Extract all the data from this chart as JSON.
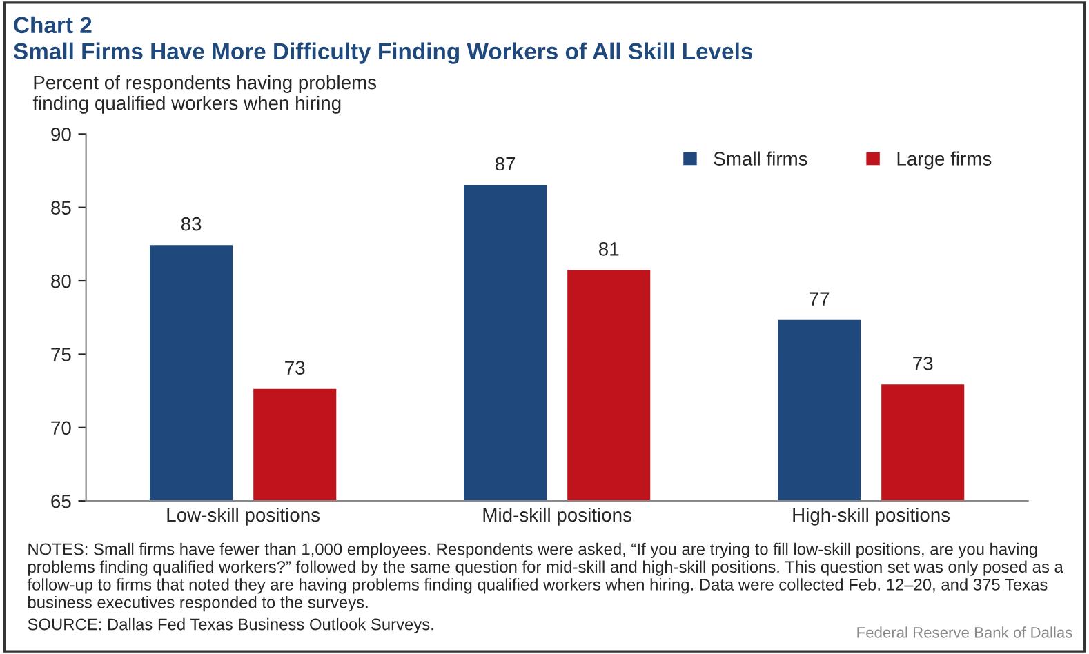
{
  "chart_data": {
    "type": "bar",
    "title": "Chart 2",
    "subtitle": "Small Firms Have More Difficulty Finding Workers of All Skill Levels",
    "ylabel": "Percent of respondents having problems\nfinding qualified workers when hiring",
    "categories": [
      "Low-skill positions",
      "Mid-skill positions",
      "High-skill positions"
    ],
    "series": [
      {
        "name": "Small firms",
        "color": "#1f497d",
        "values": [
          82.5,
          86.6,
          77.4
        ],
        "value_labels": [
          "83",
          "87",
          "77"
        ]
      },
      {
        "name": "Large firms",
        "color": "#c0141c",
        "values": [
          72.7,
          80.8,
          73.0
        ],
        "value_labels": [
          "73",
          "81",
          "73"
        ]
      }
    ],
    "ylim": [
      65,
      90
    ],
    "yticks": [
      65,
      70,
      75,
      80,
      85,
      90
    ],
    "grid": false,
    "legend": "top right",
    "annotations": [
      "NOTES: Small firms have fewer than 1,000 employees. Respondents were asked, “If you are trying to fill low-skill positions, are you having problems finding qualified workers?” followed by the same question for mid-skill and high-skill positions. This question set was only posed as a follow-up to firms that noted they are having problems finding qualified workers when hiring. Data were collected Feb. 12–20, and 375 Texas business executives responded to the surveys.",
      "SOURCE: Dallas Fed Texas Business Outlook Surveys.",
      "Federal Reserve Bank of Dallas"
    ]
  }
}
